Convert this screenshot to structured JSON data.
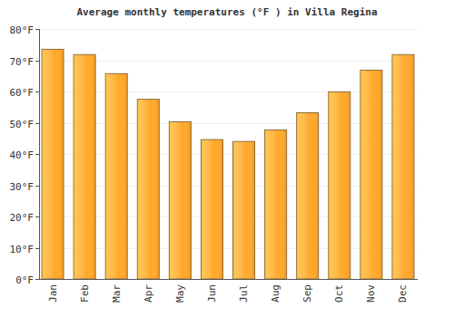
{
  "chart_data": {
    "type": "bar",
    "title": "Average monthly temperatures (°F ) in Villa Regina",
    "categories": [
      "Jan",
      "Feb",
      "Mar",
      "Apr",
      "May",
      "Jun",
      "Jul",
      "Aug",
      "Sep",
      "Oct",
      "Nov",
      "Dec"
    ],
    "values": [
      73.5,
      71.8,
      65.7,
      57.5,
      50.3,
      44.6,
      44.0,
      47.7,
      53.2,
      59.9,
      66.8,
      71.8
    ],
    "color": "#ffa726",
    "ylim": [
      0,
      80
    ],
    "yticks": [
      {
        "value": 0,
        "label": "0°F"
      },
      {
        "value": 10,
        "label": "10°F"
      },
      {
        "value": 20,
        "label": "20°F"
      },
      {
        "value": 30,
        "label": "30°F"
      },
      {
        "value": 40,
        "label": "40°F"
      },
      {
        "value": 50,
        "label": "50°F"
      },
      {
        "value": 60,
        "label": "60°F"
      },
      {
        "value": 70,
        "label": "70°F"
      },
      {
        "value": 80,
        "label": "80°F"
      }
    ],
    "grid": true
  }
}
